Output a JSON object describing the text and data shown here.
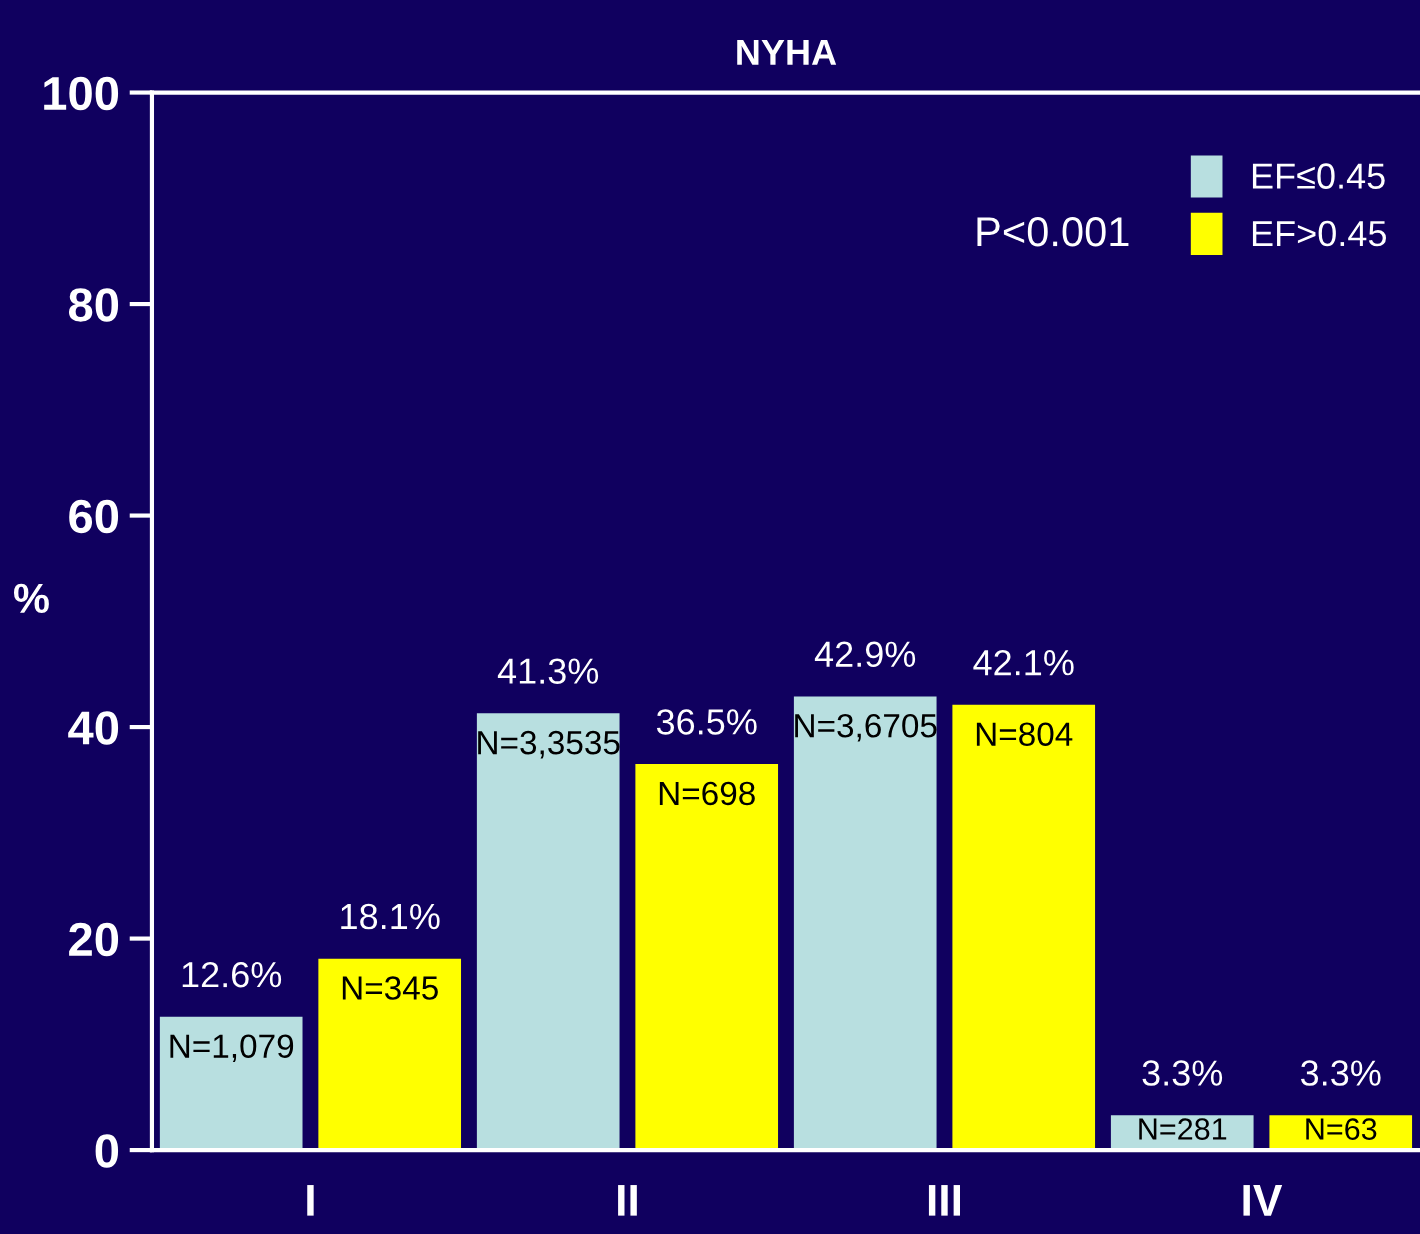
{
  "chart_data": {
    "type": "bar",
    "title": "NYHA",
    "ylabel": "%",
    "categories": [
      "I",
      "II",
      "III",
      "IV"
    ],
    "series": [
      {
        "name": "EF≤0.45",
        "color": "#b8dfe0",
        "values": [
          12.6,
          41.3,
          42.9,
          3.3
        ],
        "value_labels": [
          "12.6%",
          "41.3%",
          "42.9%",
          "3.3%"
        ]
      },
      {
        "name": "EF>0.45",
        "color": "#ffff00",
        "values": [
          18.1,
          36.5,
          42.1,
          3.3
        ],
        "value_labels": [
          "18.1%",
          "36.5%",
          "42.1%",
          "3.3%"
        ]
      }
    ],
    "ylim": [
      0,
      100
    ],
    "yticks": [
      0,
      20,
      40,
      60,
      80,
      100
    ],
    "grid": false,
    "legend": "top right",
    "annotations": [
      "P<0.001",
      {
        "text": "N=1,079",
        "x": "I",
        "y": 12.6
      },
      {
        "text": "N=3,3535",
        "x": "II",
        "y": 41.3
      },
      {
        "text": "N=3,6705",
        "x": "III",
        "y": 42.9
      },
      {
        "text": "N=281",
        "x": "IV",
        "y": 3.3
      },
      {
        "text": "N=345",
        "x": "I",
        "y": 18.1
      },
      {
        "text": "N=698",
        "x": "II",
        "y": 36.5
      },
      {
        "text": "N=804",
        "x": "III",
        "y": 42.1
      },
      {
        "text": "N=63",
        "x": "IV",
        "y": 3.3
      }
    ]
  }
}
